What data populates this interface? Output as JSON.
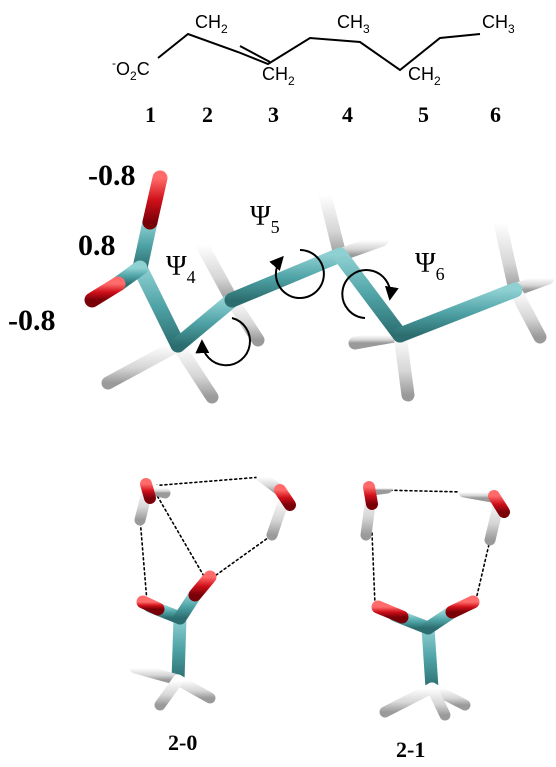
{
  "skeletal_formula": {
    "carboxylate_prefix": "-",
    "carboxylate": "O",
    "carboxylate_sub": "2",
    "carboxylate_end": "C",
    "ch2_a": "CH",
    "ch2_a_sub": "2",
    "ch2_b": "CH",
    "ch2_b_sub": "2",
    "ch3_a": "CH",
    "ch3_a_sub": "3",
    "ch2_c": "CH",
    "ch2_c_sub": "2",
    "ch3_b": "CH",
    "ch3_b_sub": "3"
  },
  "carbon_numbers": [
    "1",
    "2",
    "3",
    "4",
    "5",
    "6"
  ],
  "charges": {
    "top_oxygen": "-0.8",
    "carbon": "0.8",
    "bottom_oxygen": "-0.8"
  },
  "dihedrals": [
    {
      "symbol": "Ψ",
      "sub": "4"
    },
    {
      "symbol": "Ψ",
      "sub": "5"
    },
    {
      "symbol": "Ψ",
      "sub": "6"
    }
  ],
  "clusters": [
    {
      "label": "2-0"
    },
    {
      "label": "2-1"
    }
  ],
  "colors": {
    "carbon": "#4fa3a6",
    "oxygen": "#d0101a",
    "hydrogen": "#d9d9d9"
  }
}
